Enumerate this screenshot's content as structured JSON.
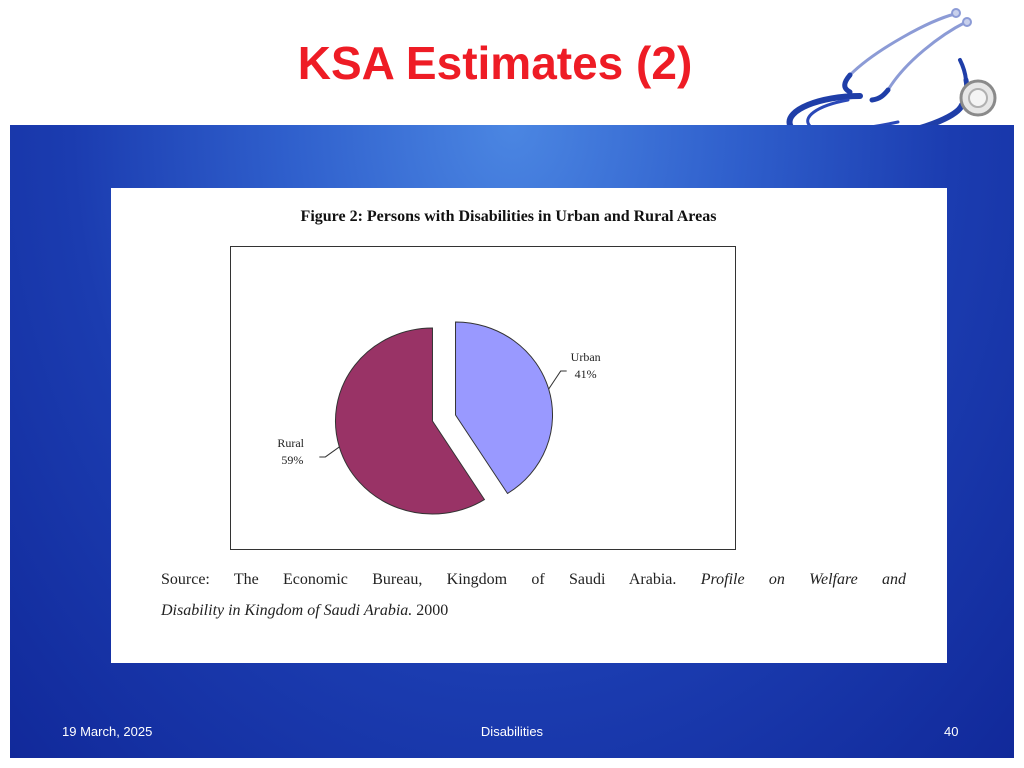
{
  "slide": {
    "title": "KSA Estimates (2)",
    "footer_date": "19 March, 2025",
    "footer_center": "Disabilities",
    "page_number": "40"
  },
  "figure": {
    "source_prefix": "Source:",
    "source_publisher": "The Economic Bureau, Kingdom of Saudi Arabia.",
    "source_title_a": "Profile on Welfare and",
    "source_title_b": "Disability in Kingdom of Saudi Arabia.",
    "source_year": "2000"
  },
  "chart_data": {
    "type": "pie",
    "title": "Figure 2: Persons with Disabilities in Urban and Rural Areas",
    "slices": [
      {
        "label": "Urban",
        "value": 41,
        "value_label": "41%",
        "color": "#9999ff",
        "exploded": true
      },
      {
        "label": "Rural",
        "value": 59,
        "value_label": "59%",
        "color": "#993366",
        "exploded": true
      }
    ],
    "legend": "none"
  },
  "colors": {
    "title": "#ee1c25",
    "panel": "#1b3cb0",
    "stethoscope": "#1f3ea8"
  }
}
